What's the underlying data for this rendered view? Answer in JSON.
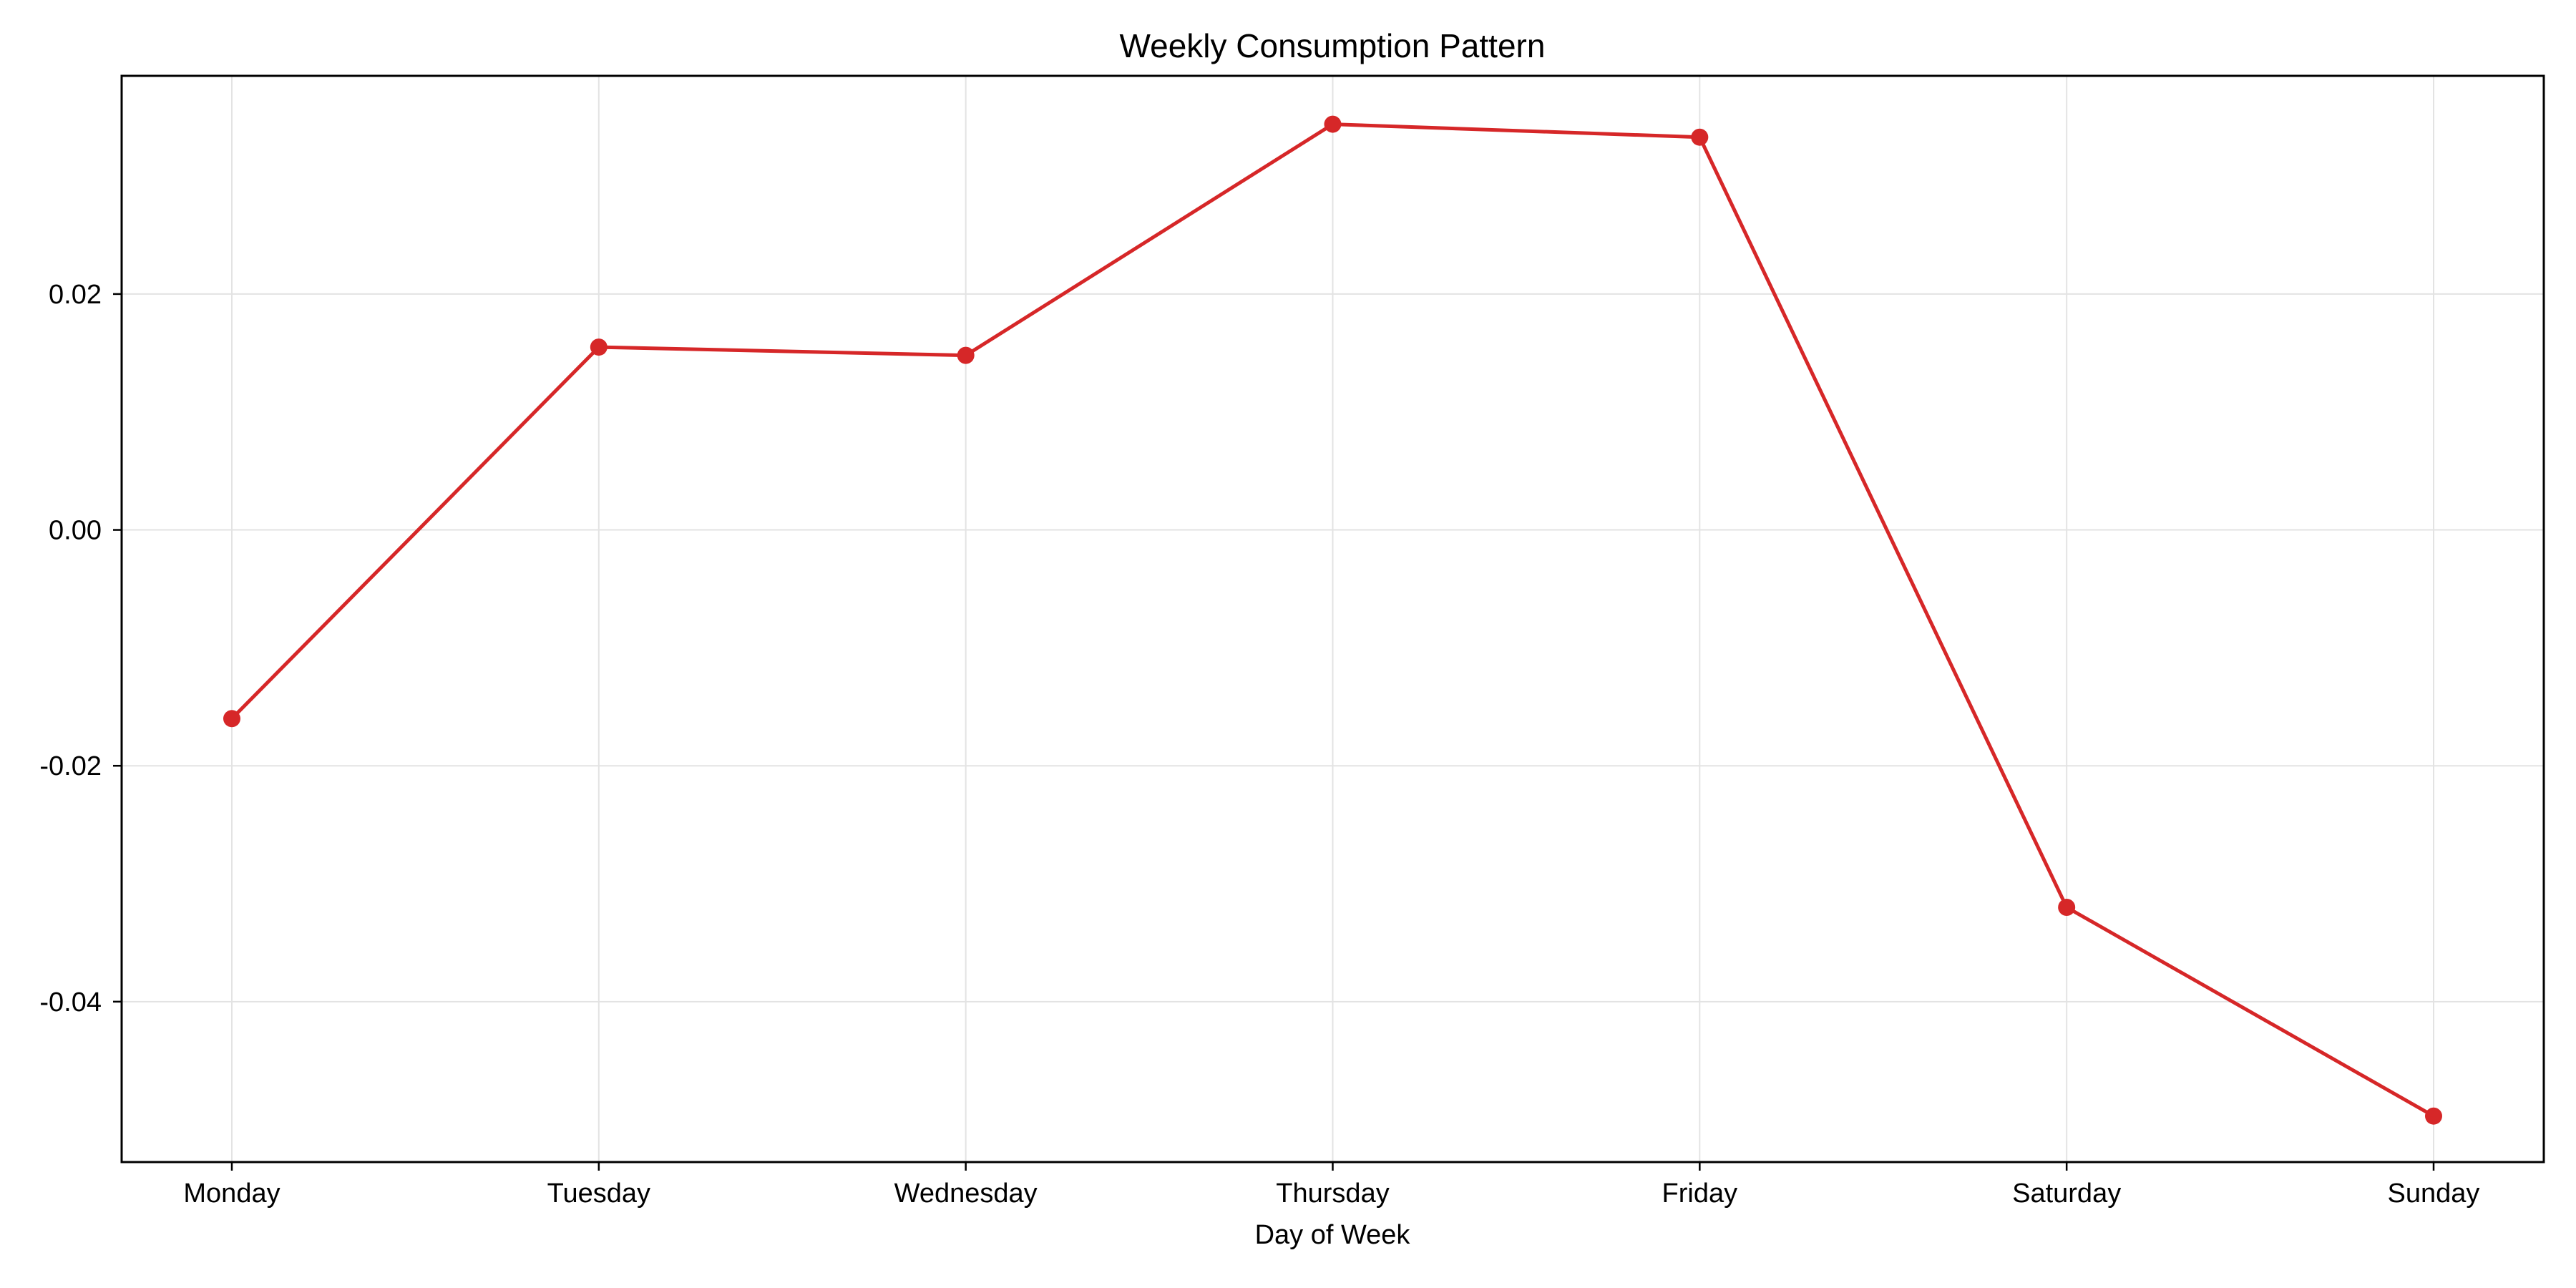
{
  "chart_data": {
    "type": "line",
    "title": "Weekly Consumption Pattern",
    "xlabel": "Day of Week",
    "ylabel": "",
    "categories": [
      "Monday",
      "Tuesday",
      "Wednesday",
      "Thursday",
      "Friday",
      "Saturday",
      "Sunday"
    ],
    "series": [
      {
        "values": [
          -0.016,
          0.0155,
          0.0148,
          0.0344,
          0.0333,
          -0.032,
          -0.0497
        ],
        "color": "#d62728"
      }
    ],
    "ylim": [
      -0.0536,
      0.0385
    ],
    "yticks": [
      0.02,
      0.0,
      -0.02,
      -0.04
    ],
    "ytick_labels": [
      "0.02",
      "0.00",
      "-0.02",
      "-0.04"
    ],
    "grid": true,
    "legend": "none"
  }
}
